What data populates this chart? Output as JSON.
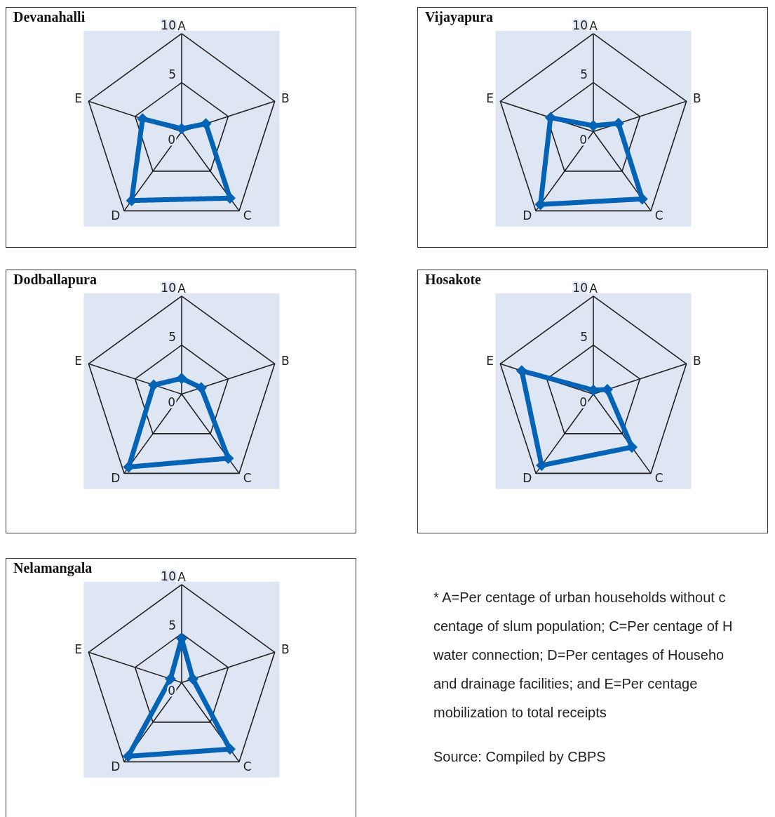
{
  "chart_data": [
    {
      "type": "radar",
      "title": "Devanahalli",
      "categories": [
        "A",
        "B",
        "C",
        "D",
        "E"
      ],
      "ylim": [
        0,
        10
      ],
      "yticks": [
        0,
        5,
        10
      ],
      "grid": true,
      "marker": "diamond",
      "series": [
        {
          "color": "#0563b5",
          "values": [
            0.3,
            2.6,
            8.4,
            8.7,
            4.2
          ]
        }
      ]
    },
    {
      "type": "radar",
      "title": "Vijayapura",
      "categories": [
        "A",
        "B",
        "C",
        "D",
        "E"
      ],
      "ylim": [
        0,
        10
      ],
      "yticks": [
        0,
        5,
        10
      ],
      "grid": true,
      "marker": "diamond",
      "series": [
        {
          "color": "#0563b5",
          "values": [
            0.6,
            2.7,
            8.5,
            9.2,
            4.6
          ]
        }
      ]
    },
    {
      "type": "radar",
      "title": "Dodballapura",
      "categories": [
        "A",
        "B",
        "C",
        "D",
        "E"
      ],
      "ylim": [
        0,
        10
      ],
      "yticks": [
        0,
        5,
        10
      ],
      "grid": true,
      "marker": "diamond",
      "series": [
        {
          "color": "#0563b5",
          "values": [
            1.6,
            2.1,
            8.1,
            9.2,
            3.0
          ]
        }
      ]
    },
    {
      "type": "radar",
      "title": "Hosakote",
      "categories": [
        "A",
        "B",
        "C",
        "D",
        "E"
      ],
      "ylim": [
        0,
        10
      ],
      "yticks": [
        0,
        5,
        10
      ],
      "grid": true,
      "marker": "diamond",
      "series": [
        {
          "color": "#0563b5",
          "values": [
            0.4,
            1.5,
            6.7,
            9.0,
            7.7
          ]
        }
      ]
    },
    {
      "type": "radar",
      "title": "Nelamangala",
      "categories": [
        "A",
        "B",
        "C",
        "D",
        "E"
      ],
      "ylim": [
        0,
        10
      ],
      "yticks": [
        0,
        5,
        10
      ],
      "grid": true,
      "marker": "diamond",
      "series": [
        {
          "color": "#0563b5",
          "values": [
            4.5,
            1.2,
            8.4,
            9.3,
            1.2
          ]
        }
      ]
    },
    {
      "type": "other",
      "annotations": [
        "* A=Per centage of urban households without c",
        "centage of slum population; C=Per centage of H",
        "water connection; D=Per centages of Househo",
        "and drainage facilities; and E=Per centage",
        "mobilization to total receipts",
        "Source: Compiled by CBPS"
      ]
    }
  ]
}
